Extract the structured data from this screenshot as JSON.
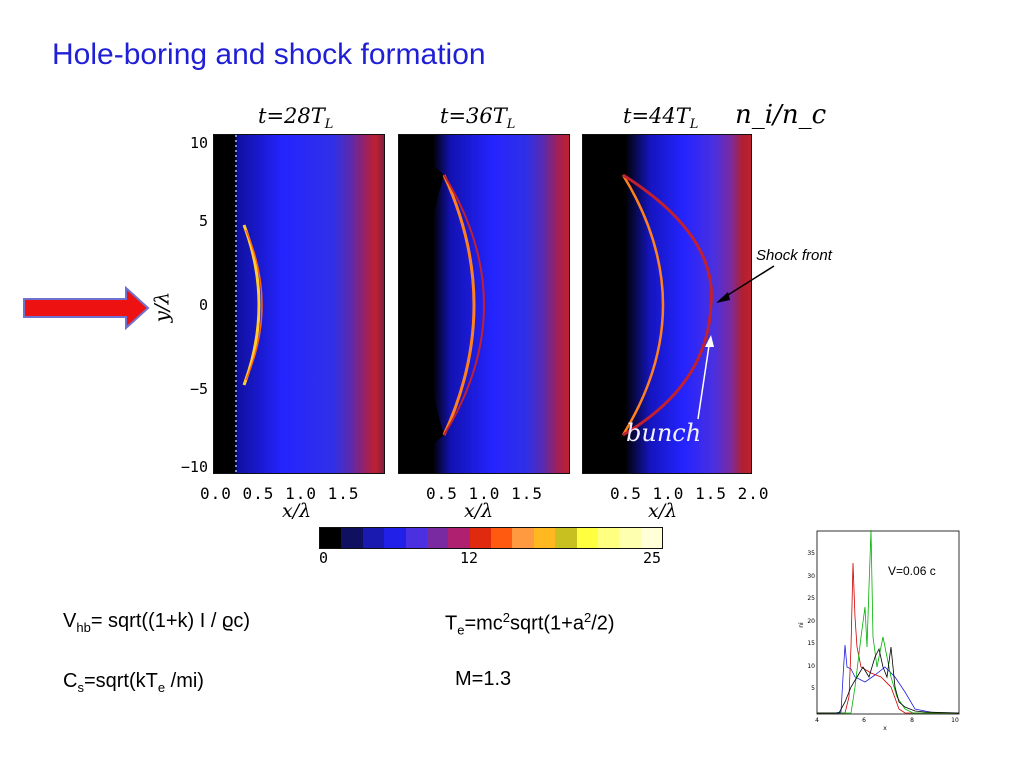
{
  "title": "Hole-boring and shock formation",
  "panels": [
    {
      "time": "t=28T",
      "sub": "L",
      "x_ticks": "0.0 0.5 1.0 1.5"
    },
    {
      "time": "t=36T",
      "sub": "L",
      "x_ticks": "0.5 1.0 1.5"
    },
    {
      "time": "t=44T",
      "sub": "L",
      "x_ticks": "0.5 1.0 1.5 2.0"
    }
  ],
  "quantity_label": "n_i/n_c",
  "y_axis_label": "y/λ",
  "y_ticks": [
    "10",
    "5",
    "0",
    "−5",
    "−10"
  ],
  "x_axis_label": "x/λ",
  "colorbar": {
    "ticks": [
      "0",
      "12",
      "25"
    ],
    "colors": [
      "#000000",
      "#101060",
      "#1a1ab0",
      "#2020e8",
      "#4a30e0",
      "#7a2aa0",
      "#b02070",
      "#e02a10",
      "#ff5a10",
      "#ff9a40",
      "#ffb820",
      "#c8c020",
      "#ffff40",
      "#ffff80",
      "#ffffb0",
      "#ffffd8"
    ]
  },
  "annotations": {
    "shock_front": "Shock front",
    "bunch": "bunch"
  },
  "equations": {
    "vhb": {
      "base": "V",
      "sub": "hb",
      "rest": "= sqrt((1+k) I / ϱc)"
    },
    "cs": {
      "base": "C",
      "sub": "s",
      "mid": "=sqrt(kT",
      "sub2": "e",
      "rest": " /mi)"
    },
    "te": {
      "base": "T",
      "sub": "e",
      "mid": "=mc",
      "sup": "2",
      "mid2": "sqrt(1+a",
      "sup2": "2",
      "rest": "/2)"
    },
    "mach": "M=1.3"
  },
  "small_plot": {
    "velocity": "V=0.06 c",
    "x_label": "x",
    "y_label": "ni",
    "x_ticks": [
      "4",
      "6",
      "8",
      "10"
    ],
    "y_ticks": [
      "5",
      "10",
      "15",
      "20",
      "25",
      "30",
      "35"
    ],
    "colors": {
      "red": "#d00000",
      "green": "#00b000",
      "blue": "#2020e0",
      "black": "#000000"
    }
  },
  "colors": {
    "title": "#1f1fd6",
    "arrow": "#ee1111"
  }
}
